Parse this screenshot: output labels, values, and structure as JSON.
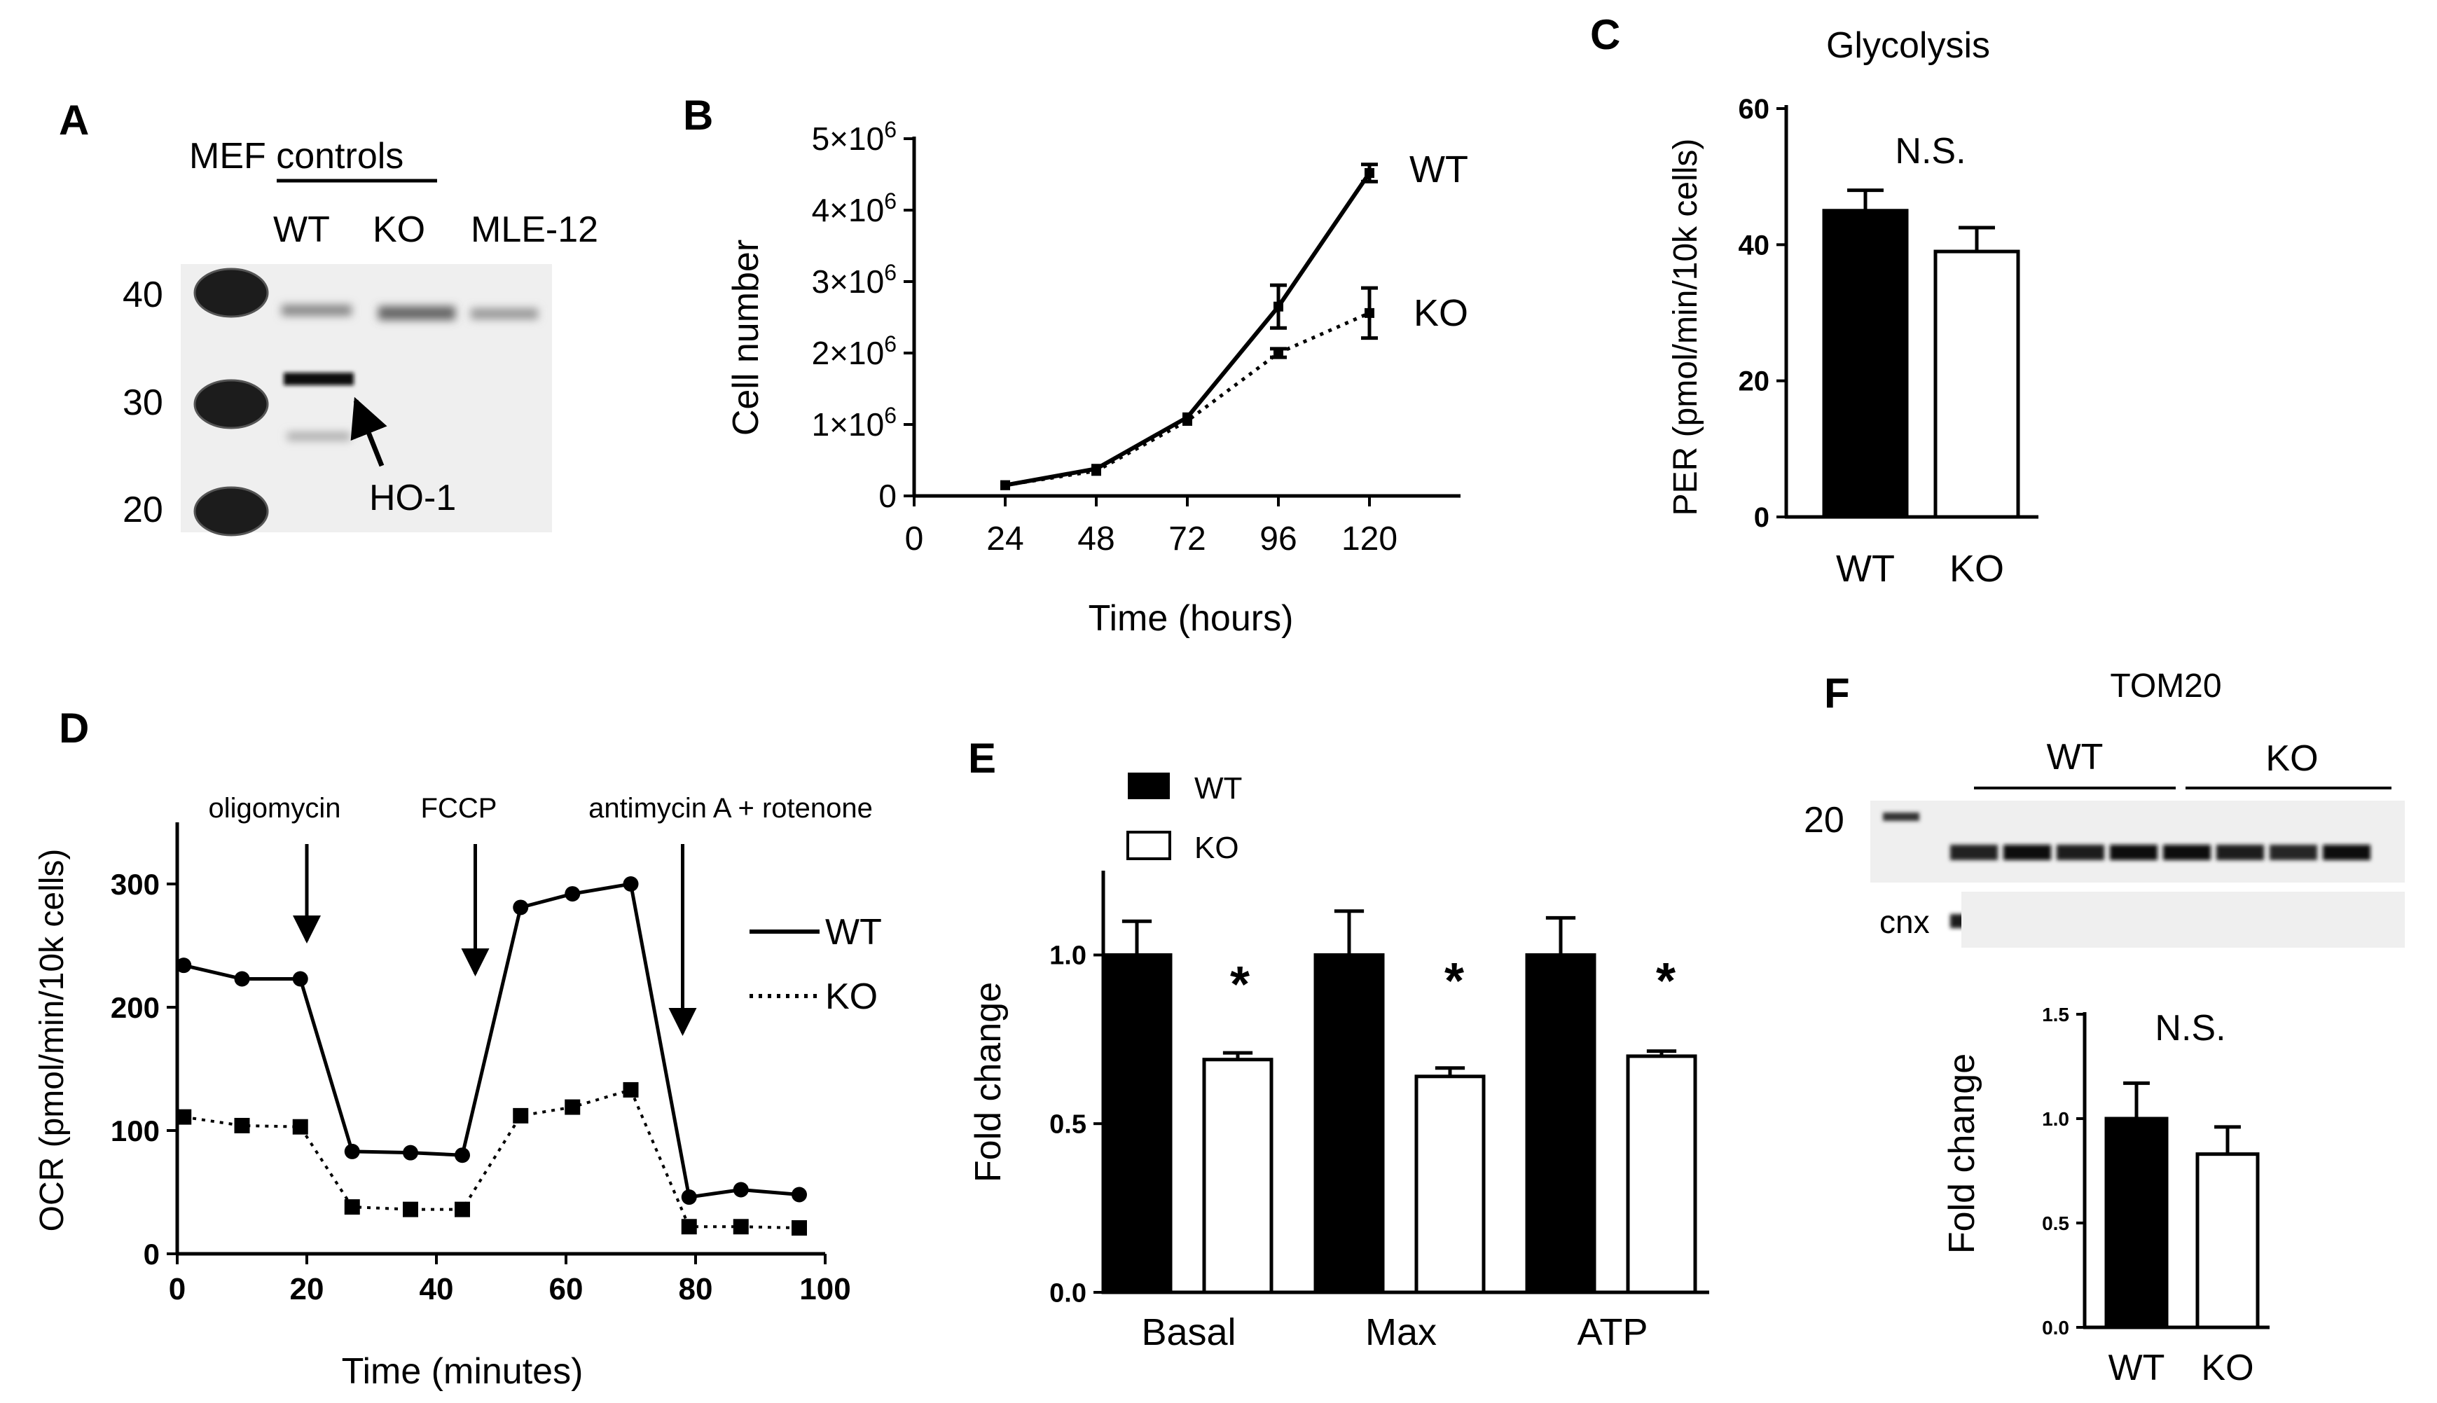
{
  "chart_data": [
    {
      "panel": "A",
      "type": "blot",
      "header": "MEF controls",
      "lanes": [
        "WT",
        "KO",
        "MLE-12"
      ],
      "marker_labels": [
        "40",
        "30",
        "20"
      ],
      "annotation": "HO-1"
    },
    {
      "panel": "B",
      "type": "line",
      "x": [
        24,
        48,
        72,
        96,
        120
      ],
      "series": [
        {
          "name": "WT",
          "values": [
            150000,
            380000,
            1100000,
            2650000,
            4520000
          ],
          "errors": [
            20000,
            30000,
            40000,
            300000,
            120000
          ]
        },
        {
          "name": "KO",
          "values": [
            150000,
            350000,
            1050000,
            2000000,
            2560000
          ],
          "errors": [
            20000,
            30000,
            40000,
            60000,
            350000
          ]
        }
      ],
      "xlabel": "Time (hours)",
      "ylabel": "Cell number",
      "xlim": [
        0,
        144
      ],
      "ylim": [
        0,
        5000000
      ],
      "xticks": [
        "0",
        "24",
        "48",
        "72",
        "96",
        "120"
      ],
      "yticks": [
        {
          "value": 0,
          "base": "0",
          "exp": ""
        },
        {
          "value": 1000000,
          "base": "1×10",
          "exp": "6"
        },
        {
          "value": 2000000,
          "base": "2×10",
          "exp": "6"
        },
        {
          "value": 3000000,
          "base": "3×10",
          "exp": "6"
        },
        {
          "value": 4000000,
          "base": "4×10",
          "exp": "6"
        },
        {
          "value": 5000000,
          "base": "5×10",
          "exp": "6"
        }
      ]
    },
    {
      "panel": "C",
      "type": "bar",
      "title": "Glycolysis",
      "categories": [
        "WT",
        "KO"
      ],
      "values": [
        45,
        39
      ],
      "errors": [
        3,
        3.5
      ],
      "fills": [
        "#000000",
        "#ffffff"
      ],
      "ylabel": "PER (pmol/min/10k cells)",
      "ylim": [
        0,
        60
      ],
      "yticks": [
        "0",
        "20",
        "40",
        "60"
      ],
      "annotation": "N.S."
    },
    {
      "panel": "D",
      "type": "line",
      "series": [
        {
          "name": "WT",
          "x": [
            1,
            10,
            19,
            27,
            36,
            44,
            53,
            61,
            70,
            79,
            87,
            96
          ],
          "values": [
            234,
            223,
            223,
            83,
            82,
            80,
            281,
            292,
            300,
            46,
            52,
            48
          ]
        },
        {
          "name": "KO",
          "x": [
            1,
            10,
            19,
            27,
            36,
            44,
            53,
            61,
            70,
            79,
            87,
            96
          ],
          "values": [
            111,
            104,
            103,
            38,
            36,
            36,
            112,
            119,
            133,
            22,
            22,
            21
          ]
        }
      ],
      "xlabel": "Time (minutes)",
      "ylabel": "OCR (pmol/min/10k cells)",
      "xlim": [
        0,
        100
      ],
      "ylim": [
        0,
        350
      ],
      "xticks": [
        "0",
        "20",
        "40",
        "60",
        "80",
        "100"
      ],
      "yticks": [
        "0",
        "100",
        "200",
        "300"
      ],
      "injections": [
        {
          "label": "oligomycin",
          "x": 20
        },
        {
          "label": "FCCP",
          "x": 46
        },
        {
          "label": "antimycin A + rotenone",
          "x": 78
        }
      ]
    },
    {
      "panel": "E",
      "type": "bar",
      "categories": [
        "Basal",
        "Max",
        "ATP"
      ],
      "series": [
        {
          "name": "WT",
          "values": [
            1.0,
            1.0,
            1.0
          ],
          "errors": [
            0.1,
            0.13,
            0.11
          ]
        },
        {
          "name": "KO",
          "values": [
            0.69,
            0.64,
            0.7
          ],
          "errors": [
            0.02,
            0.025,
            0.015
          ]
        }
      ],
      "ylabel": "Fold change",
      "ylim": [
        0,
        1.25
      ],
      "yticks": [
        "0.0",
        "0.5",
        "1.0"
      ],
      "significance": [
        "*",
        "*",
        "*"
      ]
    },
    {
      "panel": "F",
      "type": "bar",
      "blot_title": "TOM20",
      "blot_groups": [
        "WT",
        "KO"
      ],
      "blot_marker": "20",
      "blot_loading": "cnx",
      "categories": [
        "WT",
        "KO"
      ],
      "values": [
        1.0,
        0.83
      ],
      "errors": [
        0.17,
        0.13
      ],
      "fills": [
        "#000000",
        "#ffffff"
      ],
      "ylabel": "Fold change",
      "ylim": [
        0,
        1.5
      ],
      "yticks": [
        "0.0",
        "0.5",
        "1.0",
        "1.5"
      ],
      "annotation": "N.S."
    }
  ]
}
